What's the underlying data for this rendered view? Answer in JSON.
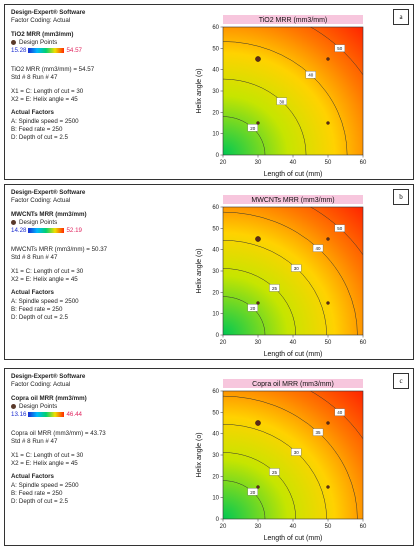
{
  "software": "Design-Expert® Software",
  "factor_coding": "Factor Coding: Actual",
  "design_points_label": "Design Points",
  "x_label": "Length of cut  (mm)",
  "y_label": "Helix angle  (o)",
  "actual_factors_title": "Actual Factors",
  "colors": {
    "low": "#1a2bd0",
    "high": "#e0245e",
    "frame": "#333333"
  },
  "panels": [
    {
      "tag": "a",
      "response_title": "TiO2 MRR  (mm3/mm)",
      "range_low": "15.28",
      "range_high": "54.57",
      "value_line": "TiO2 MRR  (mm3/mm) = 54.57",
      "std_run": "Std # 8 Run # 47",
      "x1": "X1 = C: Length of cut = 30",
      "x2": "X2 = E: Helix angle = 45",
      "factor_a": "A: Spindle speed = 2500",
      "factor_b": "B: Feed rate = 250",
      "factor_d": "D: Depth of cut = 2.5",
      "chart_title": "TiO2 MRR  (mm3/mm)"
    },
    {
      "tag": "b",
      "response_title": "MWCNTs MRR  (mm3/mm)",
      "range_low": "14.28",
      "range_high": "52.19",
      "value_line": "MWCNTs MRR (mm3/mm) = 50.37",
      "std_run": "Std # 8 Run # 47",
      "x1": "X1 = C: Length of cut = 30",
      "x2": "X2 = E: Helix angle = 45",
      "factor_a": "A: Spindle speed = 2500",
      "factor_b": "B: Feed rate = 250",
      "factor_d": "D: Depth of cut = 2.5",
      "chart_title": "MWCNTs MRR  (mm3/mm)"
    },
    {
      "tag": "c",
      "response_title": "Copra oil MRR  (mm3/mm)",
      "range_low": "13.16",
      "range_high": "46.44",
      "value_line": "Copra oil MRR  (mm3/mm) = 43.73",
      "std_run": "Std # 8 Run # 47",
      "x1": "X1 = C: Length of cut = 30",
      "x2": "X2 = E: Helix angle = 45",
      "factor_a": "A: Spindle speed = 2500",
      "factor_b": "B: Feed rate = 250",
      "factor_d": "D: Depth of cut = 2.5",
      "chart_title": "Copra oil  MRR  (mm3/mm)"
    }
  ],
  "chart_data": [
    {
      "type": "heatmap",
      "title": "TiO2 MRR  (mm3/mm)",
      "xlabel": "Length of cut  (mm)",
      "ylabel": "Helix angle  (o)",
      "xlim": [
        20,
        60
      ],
      "ylim": [
        0,
        60
      ],
      "xticks": [
        "20",
        "30",
        "40",
        "50",
        "60"
      ],
      "yticks": [
        "0",
        "10",
        "20",
        "30",
        "40",
        "50",
        "60"
      ],
      "contours": [
        {
          "label": "20",
          "level": 20
        },
        {
          "label": "30",
          "level": 30
        },
        {
          "label": "40",
          "level": 40
        },
        {
          "label": "50",
          "level": 50
        }
      ],
      "design_points": [
        {
          "x": 30,
          "y": 45
        },
        {
          "x": 50,
          "y": 45
        },
        {
          "x": 30,
          "y": 15
        },
        {
          "x": 50,
          "y": 15
        }
      ]
    },
    {
      "type": "heatmap",
      "title": "MWCNTs MRR  (mm3/mm)",
      "xlabel": "Length of cut  (mm)",
      "ylabel": "Helix angle  (o)",
      "xlim": [
        20,
        60
      ],
      "ylim": [
        0,
        60
      ],
      "xticks": [
        "20",
        "30",
        "40",
        "50",
        "60"
      ],
      "yticks": [
        "0",
        "10",
        "20",
        "30",
        "40",
        "50",
        "60"
      ],
      "contours": [
        {
          "label": "20",
          "level": 20
        },
        {
          "label": "25",
          "level": 25
        },
        {
          "label": "30",
          "level": 30
        },
        {
          "label": "40",
          "level": 40
        },
        {
          "label": "50",
          "level": 50
        }
      ],
      "design_points": [
        {
          "x": 30,
          "y": 45
        },
        {
          "x": 50,
          "y": 45
        },
        {
          "x": 30,
          "y": 15
        },
        {
          "x": 50,
          "y": 15
        }
      ]
    },
    {
      "type": "heatmap",
      "title": "Copra oil  MRR  (mm3/mm)",
      "xlabel": "Length of cut  (mm)",
      "ylabel": "Helix angle  (o)",
      "xlim": [
        20,
        60
      ],
      "ylim": [
        0,
        60
      ],
      "xticks": [
        "20",
        "30",
        "40",
        "50",
        "60"
      ],
      "yticks": [
        "0",
        "10",
        "20",
        "30",
        "40",
        "50",
        "60"
      ],
      "contours": [
        {
          "label": "20",
          "level": 20
        },
        {
          "label": "25",
          "level": 25
        },
        {
          "label": "30",
          "level": 30
        },
        {
          "label": "35",
          "level": 35
        },
        {
          "label": "40",
          "level": 40
        }
      ],
      "design_points": [
        {
          "x": 30,
          "y": 45
        },
        {
          "x": 50,
          "y": 45
        },
        {
          "x": 30,
          "y": 15
        },
        {
          "x": 50,
          "y": 15
        }
      ]
    }
  ]
}
